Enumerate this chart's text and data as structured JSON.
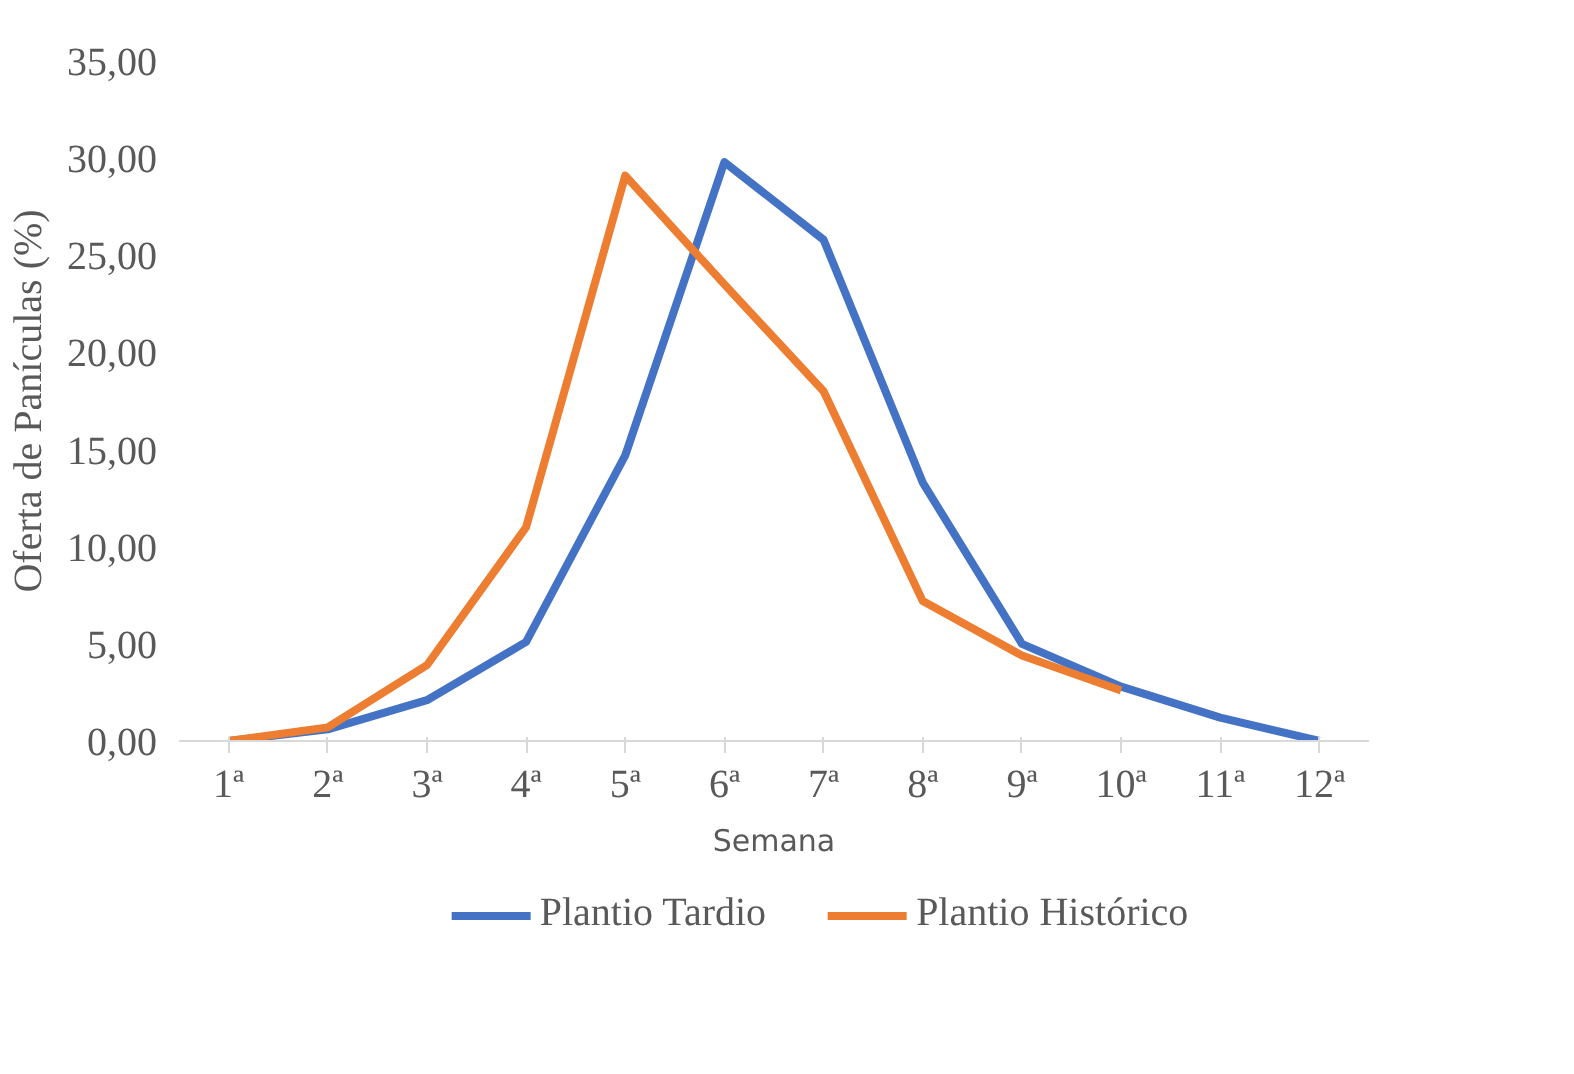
{
  "chart_data": {
    "type": "line",
    "xlabel": "Semana",
    "ylabel": "Oferta de Panículas (%)",
    "categories": [
      "1ª",
      "2ª",
      "3ª",
      "4ª",
      "5ª",
      "6ª",
      "7ª",
      "8ª",
      "9ª",
      "10ª",
      "11ª",
      "12ª"
    ],
    "series": [
      {
        "name": "Plantio Tardio",
        "color": "#4472c4",
        "values": [
          0,
          0.6,
          2.1,
          5.1,
          14.7,
          29.8,
          25.8,
          13.3,
          5.0,
          2.8,
          1.2,
          0
        ]
      },
      {
        "name": "Plantio Histórico",
        "color": "#ed7d31",
        "values": [
          0,
          0.7,
          3.9,
          11.0,
          29.1,
          23.5,
          18.0,
          7.2,
          4.4,
          2.6,
          null,
          null
        ]
      }
    ],
    "ylim": [
      0,
      35
    ],
    "yticks": [
      {
        "value": 0,
        "label": "0,00"
      },
      {
        "value": 5,
        "label": "5,00"
      },
      {
        "value": 10,
        "label": "10,00"
      },
      {
        "value": 15,
        "label": "15,00"
      },
      {
        "value": 20,
        "label": "20,00"
      },
      {
        "value": 25,
        "label": "25,00"
      },
      {
        "value": 30,
        "label": "30,00"
      },
      {
        "value": 35,
        "label": "35,00"
      }
    ],
    "grid": false,
    "legend": "bottom",
    "line_style": "solid",
    "marker": "none"
  }
}
